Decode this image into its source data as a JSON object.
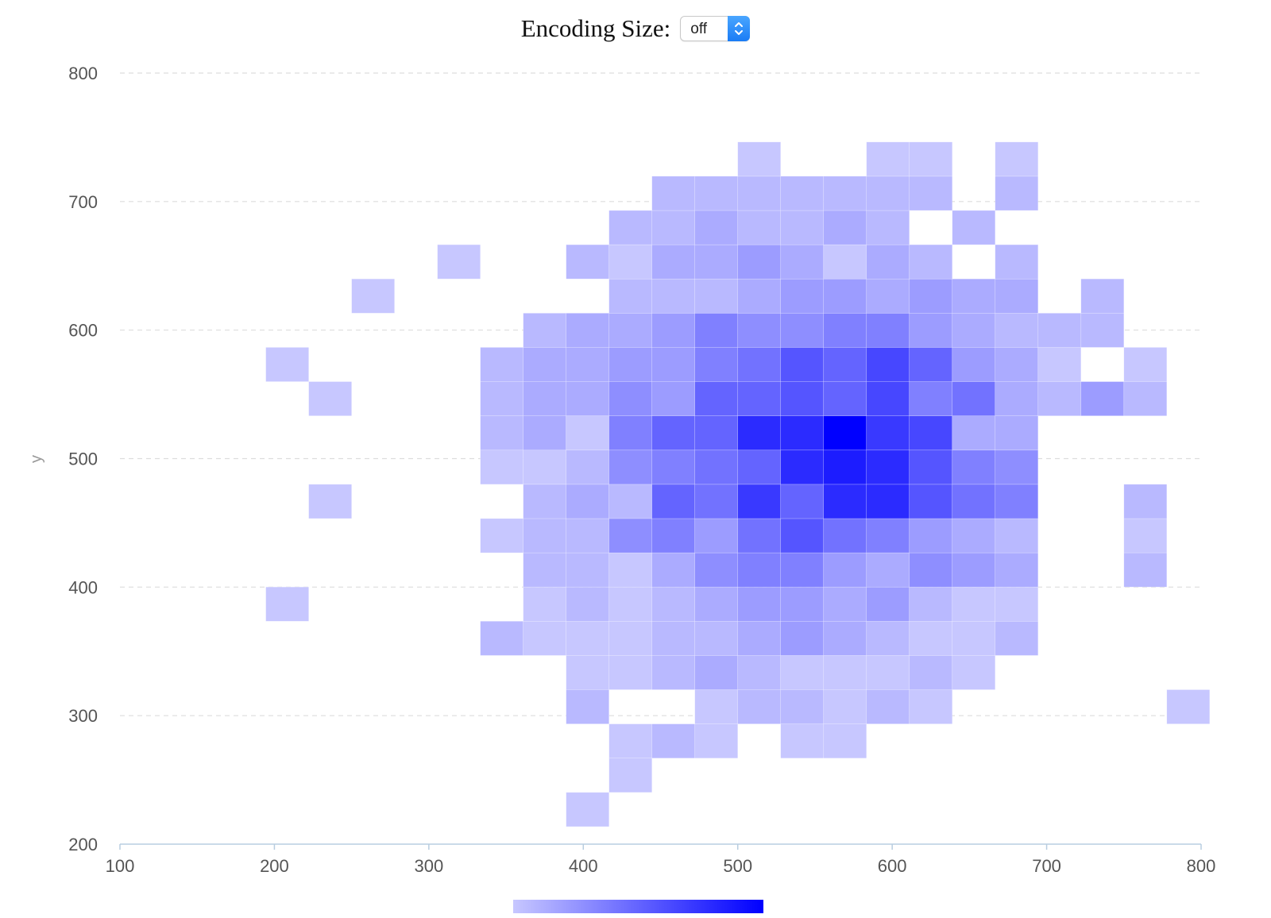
{
  "control": {
    "label": "Encoding Size:",
    "value": "off"
  },
  "colors": {
    "low": "#c7c7ff",
    "high": "#0000ff",
    "grid": "#dddddd",
    "axis": "#b8cde0"
  },
  "chart_data": {
    "type": "heatmap",
    "title": "",
    "xlabel": "",
    "ylabel": "y",
    "xlim": [
      100,
      800
    ],
    "ylim": [
      200,
      800
    ],
    "x_ticks": [
      "100",
      "200",
      "300",
      "400",
      "500",
      "600",
      "700",
      "800"
    ],
    "y_ticks": [
      "200",
      "300",
      "400",
      "500",
      "600",
      "700",
      "800"
    ],
    "x_bin_start": 194.444,
    "x_bin_width": 27.778,
    "y_bin_start": 213.636,
    "y_bin_width": 26.636,
    "grid": "horizontal dashed",
    "legend": "color gradient bar, bottom-center",
    "max_count": 15,
    "rows": [
      {
        "y_bin": 0,
        "x_bins": [
          7
        ],
        "counts": [
          1
        ]
      },
      {
        "y_bin": 1,
        "x_bins": [
          8
        ],
        "counts": [
          1
        ]
      },
      {
        "y_bin": 2,
        "x_bins": [
          8,
          9,
          10,
          12,
          13
        ],
        "counts": [
          1,
          2,
          1,
          1,
          1
        ]
      },
      {
        "y_bin": 3,
        "x_bins": [
          7,
          10,
          11,
          12,
          13,
          14,
          15,
          21
        ],
        "counts": [
          2,
          1,
          2,
          2,
          1,
          2,
          1,
          1
        ]
      },
      {
        "y_bin": 4,
        "x_bins": [
          7,
          8,
          9,
          10,
          11,
          12,
          13,
          14,
          15,
          16
        ],
        "counts": [
          1,
          1,
          2,
          3,
          2,
          1,
          1,
          1,
          2,
          1
        ]
      },
      {
        "y_bin": 5,
        "x_bins": [
          5,
          6,
          7,
          8,
          9,
          10,
          11,
          12,
          13,
          14,
          15,
          16,
          17
        ],
        "counts": [
          2,
          1,
          1,
          1,
          2,
          2,
          3,
          4,
          3,
          2,
          1,
          1,
          2
        ]
      },
      {
        "y_bin": 6,
        "x_bins": [
          0,
          6,
          7,
          8,
          9,
          10,
          11,
          12,
          13,
          14,
          15,
          16,
          17
        ],
        "counts": [
          1,
          1,
          2,
          1,
          2,
          3,
          4,
          4,
          3,
          4,
          2,
          1,
          1
        ]
      },
      {
        "y_bin": 7,
        "x_bins": [
          6,
          7,
          8,
          9,
          10,
          11,
          12,
          13,
          14,
          15,
          16,
          17,
          20
        ],
        "counts": [
          2,
          2,
          1,
          3,
          5,
          6,
          6,
          4,
          3,
          5,
          4,
          3,
          2
        ]
      },
      {
        "y_bin": 8,
        "x_bins": [
          5,
          6,
          7,
          8,
          9,
          10,
          11,
          12,
          13,
          14,
          15,
          16,
          17,
          20
        ],
        "counts": [
          1,
          2,
          2,
          5,
          6,
          4,
          7,
          9,
          7,
          6,
          4,
          3,
          2,
          1
        ]
      },
      {
        "y_bin": 9,
        "x_bins": [
          1,
          6,
          7,
          8,
          9,
          10,
          11,
          12,
          13,
          14,
          15,
          16,
          17,
          20
        ],
        "counts": [
          1,
          2,
          3,
          2,
          8,
          7,
          11,
          8,
          12,
          12,
          9,
          7,
          6,
          2
        ]
      },
      {
        "y_bin": 10,
        "x_bins": [
          5,
          6,
          7,
          8,
          9,
          10,
          11,
          12,
          13,
          14,
          15,
          16,
          17
        ],
        "counts": [
          1,
          1,
          2,
          5,
          6,
          7,
          8,
          12,
          13,
          12,
          9,
          6,
          5
        ]
      },
      {
        "y_bin": 11,
        "x_bins": [
          5,
          6,
          7,
          8,
          9,
          10,
          11,
          12,
          13,
          14,
          15,
          16,
          17
        ],
        "counts": [
          2,
          3,
          1,
          6,
          8,
          8,
          12,
          12,
          15,
          11,
          10,
          3,
          3
        ]
      },
      {
        "y_bin": 12,
        "x_bins": [
          1,
          5,
          6,
          7,
          8,
          9,
          10,
          11,
          12,
          13,
          14,
          15,
          16,
          17,
          18,
          19,
          20
        ],
        "counts": [
          1,
          2,
          3,
          3,
          5,
          4,
          8,
          8,
          9,
          8,
          10,
          6,
          7,
          3,
          2,
          4,
          2
        ]
      },
      {
        "y_bin": 13,
        "x_bins": [
          0,
          5,
          6,
          7,
          8,
          9,
          10,
          11,
          12,
          13,
          14,
          15,
          16,
          17,
          18,
          20
        ],
        "counts": [
          1,
          2,
          3,
          3,
          4,
          4,
          6,
          7,
          9,
          8,
          10,
          8,
          4,
          3,
          1,
          1
        ]
      },
      {
        "y_bin": 14,
        "x_bins": [
          6,
          7,
          8,
          9,
          10,
          11,
          12,
          13,
          14,
          15,
          16,
          17,
          18,
          19
        ],
        "counts": [
          2,
          3,
          3,
          4,
          6,
          5,
          5,
          6,
          6,
          4,
          3,
          2,
          2,
          2
        ]
      },
      {
        "y_bin": 15,
        "x_bins": [
          2,
          8,
          9,
          10,
          11,
          12,
          13,
          14,
          15,
          16,
          17,
          19
        ],
        "counts": [
          1,
          2,
          2,
          2,
          3,
          4,
          4,
          3,
          4,
          3,
          3,
          2
        ]
      },
      {
        "y_bin": 16,
        "x_bins": [
          4,
          7,
          8,
          9,
          10,
          11,
          12,
          13,
          14,
          15,
          17
        ],
        "counts": [
          1,
          2,
          1,
          3,
          3,
          4,
          3,
          1,
          3,
          2,
          2
        ]
      },
      {
        "y_bin": 17,
        "x_bins": [
          8,
          9,
          10,
          11,
          12,
          13,
          14,
          16
        ],
        "counts": [
          2,
          2,
          3,
          2,
          2,
          3,
          2,
          2
        ]
      },
      {
        "y_bin": 18,
        "x_bins": [
          9,
          10,
          11,
          12,
          13,
          14,
          15,
          17
        ],
        "counts": [
          2,
          2,
          2,
          2,
          2,
          2,
          2,
          2
        ]
      },
      {
        "y_bin": 19,
        "x_bins": [
          11,
          14,
          15,
          17
        ],
        "counts": [
          1,
          1,
          1,
          1
        ]
      }
    ]
  }
}
